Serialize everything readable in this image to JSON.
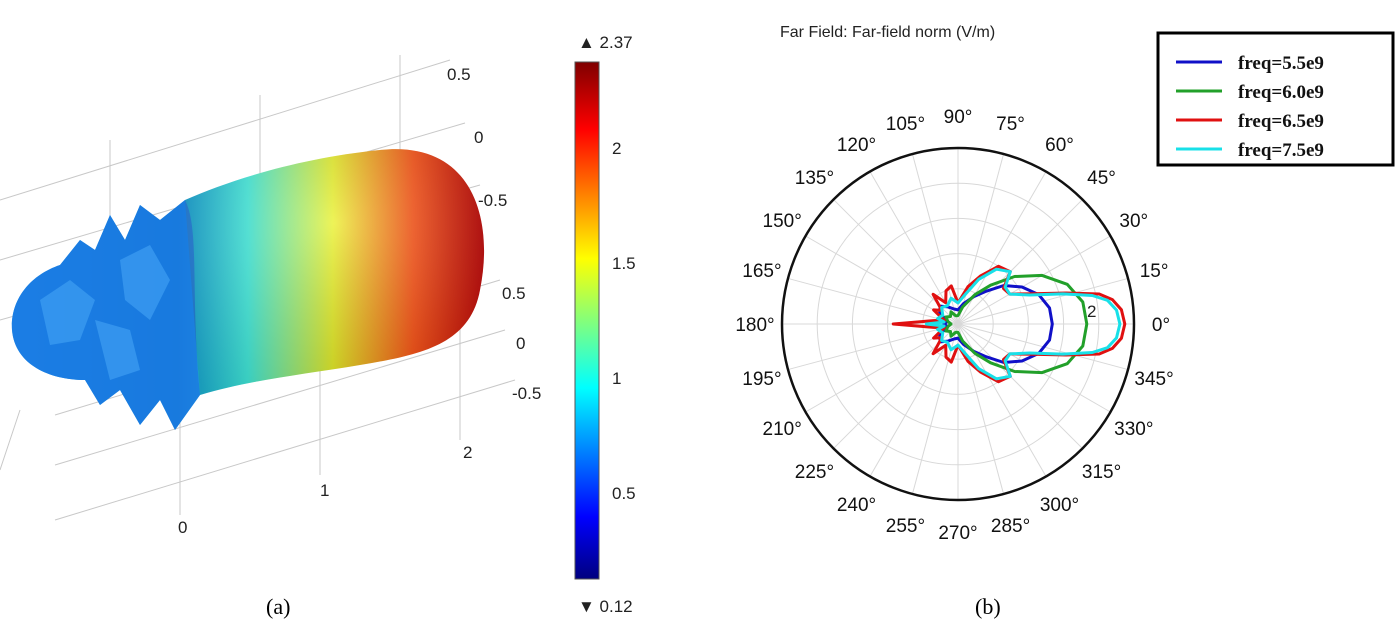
{
  "chart_data": [
    {
      "type": "3d-surface",
      "panel_label": "(a)",
      "colorbar": {
        "max_label": "▲ 2.37",
        "min_label": "▼ 0.12",
        "max": 2.37,
        "min": 0.12,
        "ticks": [
          "2",
          "1.5",
          "1",
          "0.5"
        ],
        "tick_values": [
          2,
          1.5,
          1,
          0.5
        ],
        "colormap": [
          "#00007f",
          "#0000ff",
          "#00ffff",
          "#ffff00",
          "#ff0000",
          "#7f0000"
        ]
      },
      "axis_labels": {
        "z_upper": [
          "0.5",
          "0",
          "-0.5"
        ],
        "z_lower": [
          "0.5",
          "0",
          "-0.5"
        ],
        "x": [
          "0",
          "1",
          "2"
        ]
      }
    },
    {
      "type": "polar",
      "panel_label": "(b)",
      "title": "Far Field: Far-field norm (V/m)",
      "rlim": [
        0,
        2.5
      ],
      "r_rings": [
        0.5,
        1,
        1.5,
        2,
        2.5
      ],
      "r_label": "2",
      "angle_ticks": [
        "0°",
        "15°",
        "30°",
        "45°",
        "60°",
        "75°",
        "90°",
        "105°",
        "120°",
        "135°",
        "150°",
        "165°",
        "180°",
        "195°",
        "210°",
        "225°",
        "240°",
        "255°",
        "270°",
        "285°",
        "300°",
        "315°",
        "330°",
        "345°"
      ],
      "legend": "top-right",
      "series": [
        {
          "name": "freq=5.5e9",
          "color": "#1010c8",
          "points": [
            [
              0,
              1.34
            ],
            [
              10,
              1.32
            ],
            [
              20,
              1.22
            ],
            [
              30,
              1.05
            ],
            [
              40,
              0.85
            ],
            [
              50,
              0.6
            ],
            [
              60,
              0.45
            ],
            [
              75,
              0.3
            ],
            [
              90,
              0.2
            ],
            [
              105,
              0.22
            ],
            [
              120,
              0.28
            ],
            [
              135,
              0.36
            ],
            [
              150,
              0.3
            ],
            [
              165,
              0.15
            ],
            [
              180,
              0.2
            ]
          ]
        },
        {
          "name": "freq=6.0e9",
          "color": "#22a02a",
          "points": [
            [
              0,
              1.83
            ],
            [
              10,
              1.8
            ],
            [
              20,
              1.65
            ],
            [
              30,
              1.38
            ],
            [
              40,
              1.05
            ],
            [
              50,
              0.72
            ],
            [
              60,
              0.48
            ],
            [
              75,
              0.25
            ],
            [
              90,
              0.12
            ],
            [
              105,
              0.12
            ],
            [
              120,
              0.2
            ],
            [
              135,
              0.15
            ],
            [
              150,
              0.2
            ],
            [
              165,
              0.15
            ],
            [
              180,
              0.1
            ]
          ]
        },
        {
          "name": "freq=6.5e9",
          "color": "#e01010",
          "points": [
            [
              0,
              2.37
            ],
            [
              5,
              2.33
            ],
            [
              9,
              2.22
            ],
            [
              12,
              2.05
            ],
            [
              16,
              1.6
            ],
            [
              22,
              1.15
            ],
            [
              30,
              0.85
            ],
            [
              38,
              0.82
            ],
            [
              45,
              1.05
            ],
            [
              55,
              1.0
            ],
            [
              65,
              0.75
            ],
            [
              75,
              0.55
            ],
            [
              90,
              0.3
            ],
            [
              100,
              0.55
            ],
            [
              110,
              0.5
            ],
            [
              120,
              0.35
            ],
            [
              130,
              0.55
            ],
            [
              140,
              0.3
            ],
            [
              150,
              0.4
            ],
            [
              165,
              0.2
            ],
            [
              172,
              0.35
            ],
            [
              180,
              0.92
            ]
          ]
        },
        {
          "name": "freq=7.5e9",
          "color": "#18e0e8",
          "points": [
            [
              0,
              2.3
            ],
            [
              5,
              2.26
            ],
            [
              9,
              2.15
            ],
            [
              12,
              1.95
            ],
            [
              16,
              1.55
            ],
            [
              22,
              1.1
            ],
            [
              30,
              0.85
            ],
            [
              38,
              0.85
            ],
            [
              45,
              1.05
            ],
            [
              55,
              0.95
            ],
            [
              65,
              0.7
            ],
            [
              75,
              0.45
            ],
            [
              90,
              0.3
            ],
            [
              105,
              0.38
            ],
            [
              120,
              0.3
            ],
            [
              135,
              0.33
            ],
            [
              150,
              0.25
            ],
            [
              165,
              0.3
            ],
            [
              172,
              0.2
            ],
            [
              180,
              0.45
            ]
          ]
        }
      ]
    }
  ]
}
